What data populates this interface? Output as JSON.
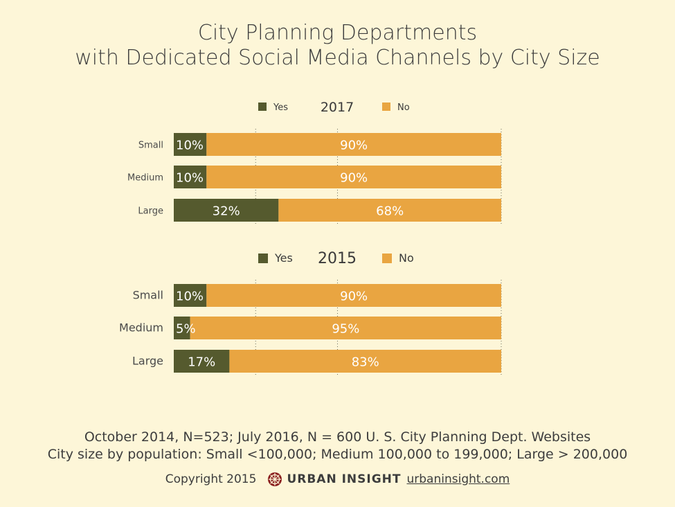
{
  "title_line1": "City Planning Departments",
  "title_line2": "with Dedicated Social Media Channels by City Size",
  "colors": {
    "yes": "#555a2e",
    "no": "#e9a541",
    "background": "#fdf6d8"
  },
  "chart_data": [
    {
      "type": "bar",
      "orientation": "horizontal",
      "stacked": true,
      "title": "2017",
      "categories": [
        "Small",
        "Medium",
        "Large"
      ],
      "series": [
        {
          "name": "Yes",
          "values": [
            10,
            10,
            32
          ],
          "labels": [
            "10%",
            "10%",
            "32%"
          ]
        },
        {
          "name": "No",
          "values": [
            90,
            90,
            68
          ],
          "labels": [
            "90%",
            "90%",
            "68%"
          ]
        }
      ],
      "xlim": [
        0,
        100
      ],
      "grid": true,
      "legend": "top"
    },
    {
      "type": "bar",
      "orientation": "horizontal",
      "stacked": true,
      "title": "2015",
      "categories": [
        "Small",
        "Medium",
        "Large"
      ],
      "series": [
        {
          "name": "Yes",
          "values": [
            10,
            5,
            17
          ],
          "labels": [
            "10%",
            "5%",
            "17%"
          ]
        },
        {
          "name": "No",
          "values": [
            90,
            95,
            83
          ],
          "labels": [
            "90%",
            "95%",
            "83%"
          ]
        }
      ],
      "xlim": [
        0,
        100
      ],
      "grid": true,
      "legend": "top"
    }
  ],
  "footer": {
    "line1": "October 2014, N=523; July 2016, N = 600 U. S. City Planning Dept. Websites",
    "line2": "City size by population:  Small <100,000; Medium 100,000 to 199,000; Large > 200,000",
    "copyright": "Copyright 2015",
    "brand": "URBAN INSIGHT",
    "link": "urbaninsight.com",
    "logo_icon": "compass-rose-icon"
  }
}
